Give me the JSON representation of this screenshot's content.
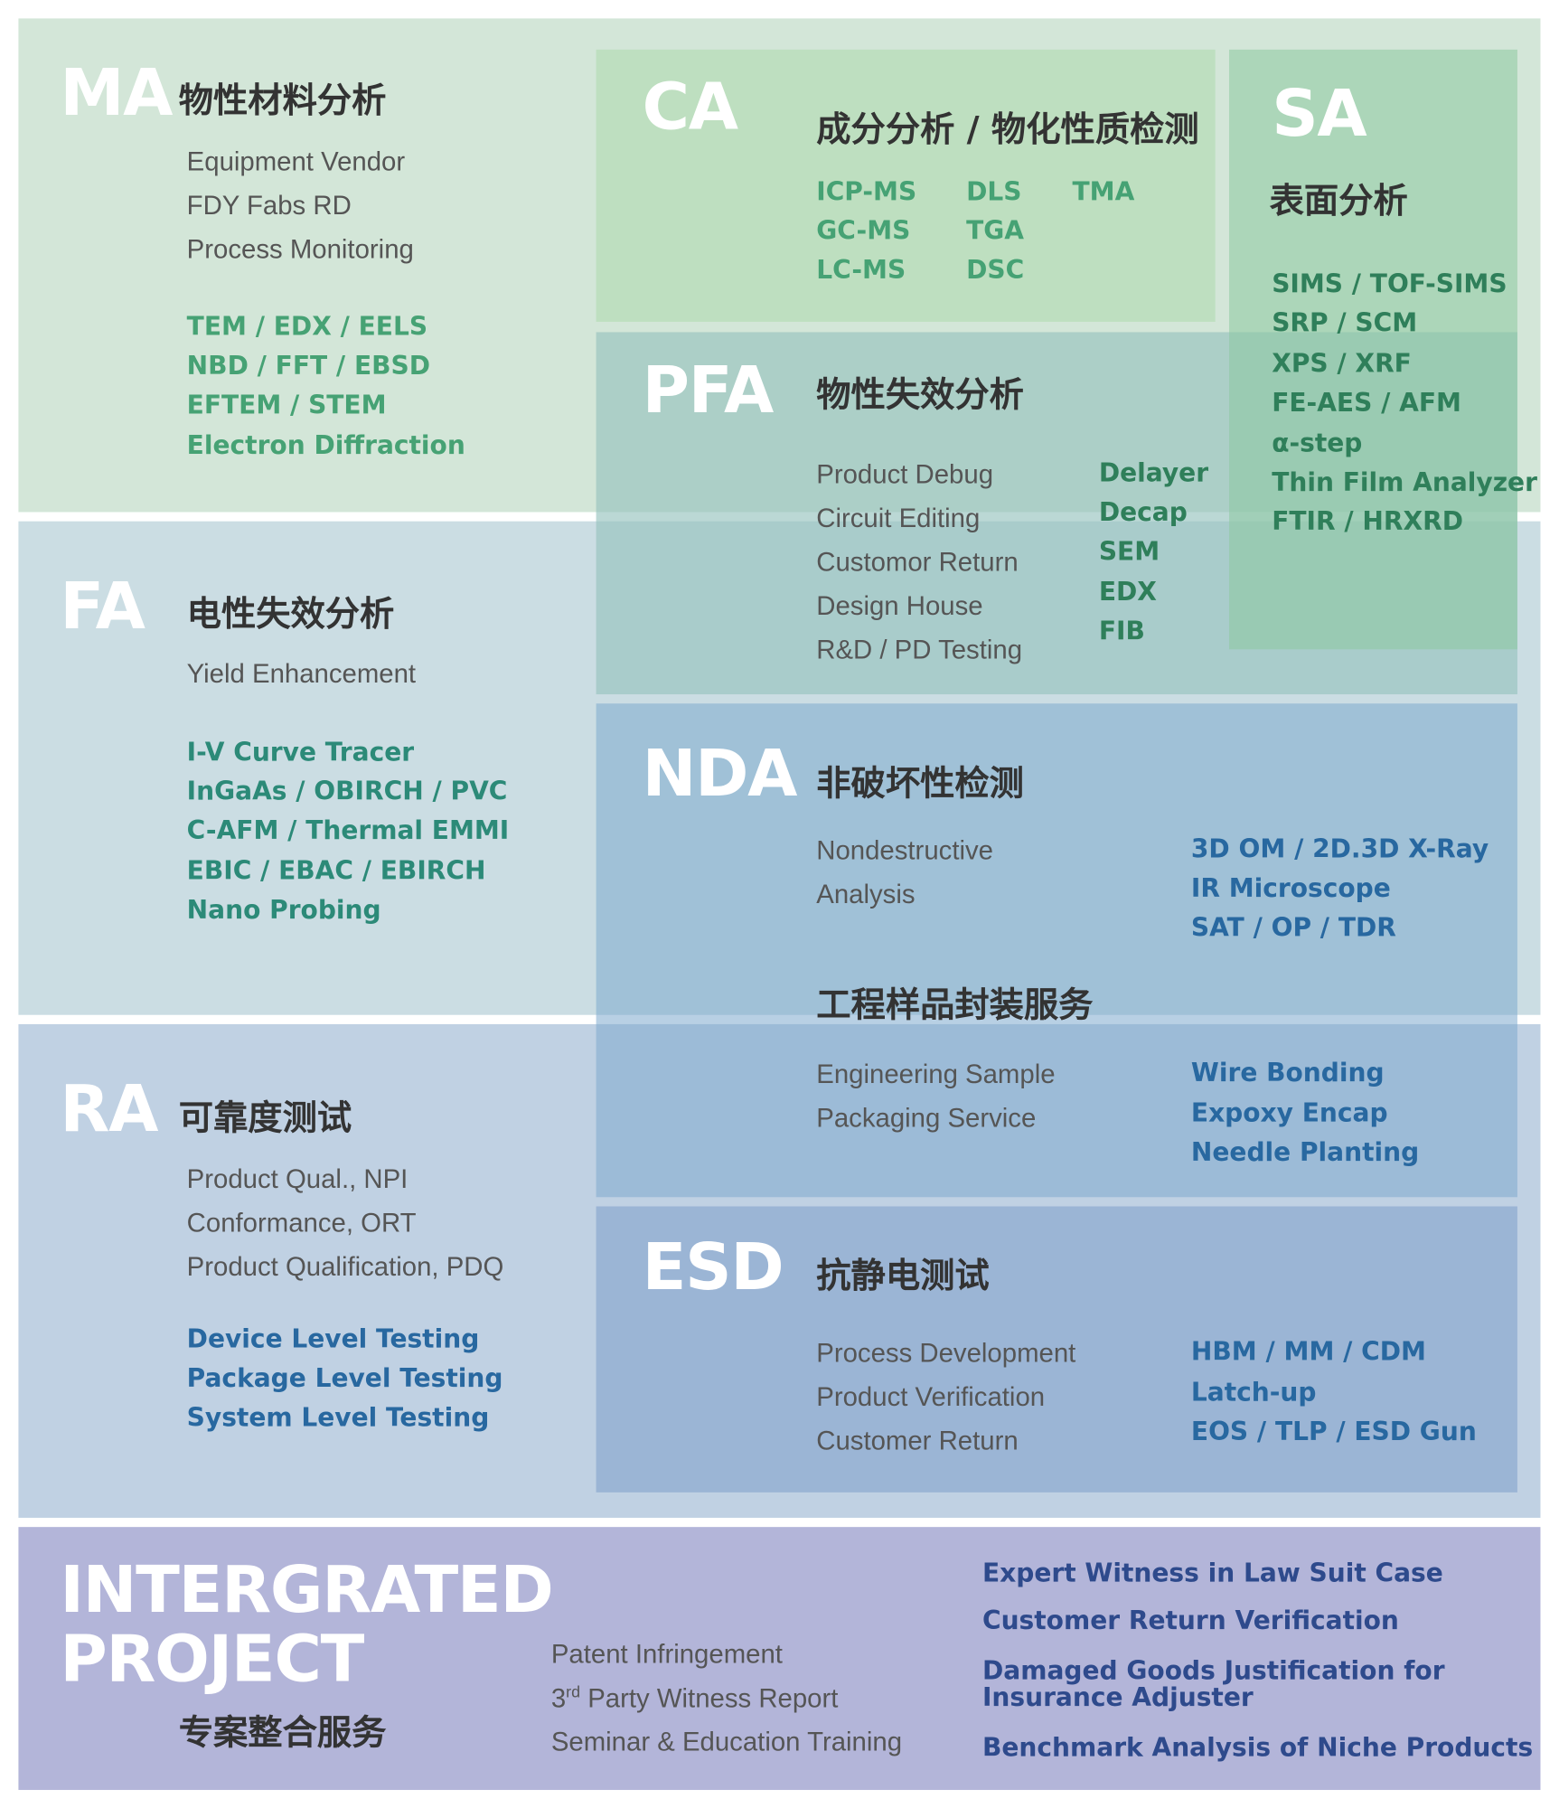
{
  "sections": [
    {
      "code": "MA",
      "title": "物性材料分析",
      "applications": [
        "Equipment Vendor",
        "FDY Fabs RD",
        "Process Monitoring"
      ],
      "techniques": [
        "TEM / EDX / EELS",
        "NBD / FFT / EBSD",
        "EFTEM / STEM",
        "Electron Diffraction"
      ]
    },
    {
      "code": "CA",
      "title": "成分分析 / 物化性质检测",
      "technique_columns": [
        [
          "ICP-MS",
          "GC-MS",
          "LC-MS"
        ],
        [
          "DLS",
          "TGA",
          "DSC"
        ],
        [
          "TMA"
        ]
      ]
    },
    {
      "code": "SA",
      "title": "表面分析",
      "techniques": [
        "SIMS / TOF-SIMS",
        "SRP / SCM",
        "XPS / XRF",
        "FE-AES / AFM",
        "α-step",
        "Thin Film Analyzer",
        "FTIR / HRXRD"
      ]
    },
    {
      "code": "PFA",
      "title": "物性失效分析",
      "applications": [
        "Product Debug",
        "Circuit Editing",
        "Customor Return",
        "Design House",
        "R&D / PD Testing"
      ],
      "techniques": [
        "Delayer",
        "Decap",
        "SEM",
        "EDX",
        "FIB"
      ]
    },
    {
      "code": "FA",
      "title": "电性失效分析",
      "applications": [
        "Yield Enhancement"
      ],
      "techniques": [
        "I-V Curve Tracer",
        "InGaAs / OBIRCH / PVC",
        "C-AFM / Thermal EMMI",
        "EBIC / EBAC / EBIRCH",
        "Nano Probing"
      ]
    },
    {
      "code": "NDA",
      "title": "非破坏性检测",
      "applications": [
        "Nondestructive",
        "Analysis"
      ],
      "techniques": [
        "3D OM / 2D.3D X-Ray",
        "IR Microscope",
        "SAT / OP / TDR"
      ],
      "packaging": {
        "title": "工程样品封装服务",
        "applications": [
          "Engineering Sample",
          "Packaging Service"
        ],
        "techniques": [
          "Wire Bonding",
          "Expoxy Encap",
          "Needle Planting"
        ]
      }
    },
    {
      "code": "RA",
      "title": "可靠度测试",
      "applications": [
        "Product Qual., NPI",
        "Conformance, ORT",
        "Product Qualification, PDQ"
      ],
      "techniques": [
        "Device Level Testing",
        "Package Level Testing",
        "System Level Testing"
      ]
    },
    {
      "code": "ESD",
      "title": "抗静电测试",
      "applications": [
        "Process Development",
        "Product Verification",
        "Customer Return"
      ],
      "techniques": [
        "HBM / MM / CDM",
        "Latch-up",
        "EOS / TLP / ESD Gun"
      ]
    },
    {
      "code_lines": [
        "INTERGRATED",
        "PROJECT"
      ],
      "title": "专案整合服务",
      "applications": [
        "Patent Infringement",
        {
          "ordinal": "3",
          "suffix": "rd",
          "text": "Party Witness Report"
        },
        "Seminar & Education Training"
      ],
      "techniques": [
        "Expert Witness in Law Suit Case",
        "Customer Return Verification",
        "Damaged Goods Justification for Insurance Adjuster",
        "Benchmark Analysis of Niche Products"
      ]
    }
  ]
}
